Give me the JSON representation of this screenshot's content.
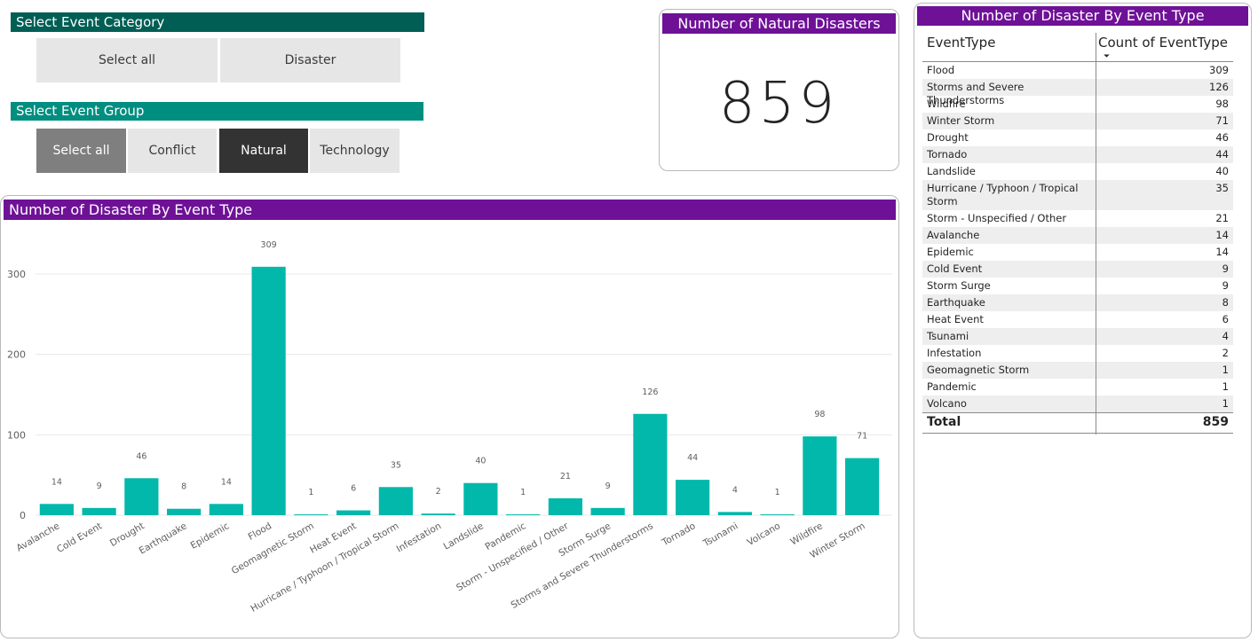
{
  "category_slicer": {
    "header": "Select Event Category",
    "options": [
      "Select all",
      "Disaster"
    ]
  },
  "group_slicer": {
    "header": "Select Event Group",
    "options": [
      {
        "label": "Select all",
        "state": "partial"
      },
      {
        "label": "Conflict",
        "state": "off"
      },
      {
        "label": "Natural",
        "state": "selected"
      },
      {
        "label": "Technology",
        "state": "off"
      }
    ]
  },
  "kpi": {
    "title": "Number of Natural Disasters",
    "value": "859"
  },
  "table": {
    "title": "Number of Disaster By Event Type",
    "col1": "EventType",
    "col2": "Count of EventType",
    "sort_indicator": "⏷",
    "rows": [
      {
        "name": "Flood",
        "count": "309"
      },
      {
        "name": "Storms and Severe Thunderstorms",
        "count": "126"
      },
      {
        "name": "Wildfire",
        "count": "98"
      },
      {
        "name": "Winter Storm",
        "count": "71"
      },
      {
        "name": "Drought",
        "count": "46"
      },
      {
        "name": "Tornado",
        "count": "44"
      },
      {
        "name": "Landslide",
        "count": "40"
      },
      {
        "name": "Hurricane / Typhoon / Tropical Storm",
        "count": "35"
      },
      {
        "name": "Storm - Unspecified / Other",
        "count": "21"
      },
      {
        "name": "Avalanche",
        "count": "14"
      },
      {
        "name": "Epidemic",
        "count": "14"
      },
      {
        "name": "Cold Event",
        "count": "9"
      },
      {
        "name": "Storm Surge",
        "count": "9"
      },
      {
        "name": "Earthquake",
        "count": "8"
      },
      {
        "name": "Heat Event",
        "count": "6"
      },
      {
        "name": "Tsunami",
        "count": "4"
      },
      {
        "name": "Infestation",
        "count": "2"
      },
      {
        "name": "Geomagnetic Storm",
        "count": "1"
      },
      {
        "name": "Pandemic",
        "count": "1"
      },
      {
        "name": "Volcano",
        "count": "1"
      }
    ],
    "total_label": "Total",
    "total_value": "859"
  },
  "colors": {
    "bar": "#01b8aa",
    "title_purple": "#6e1197",
    "slicer_header_dark": "#005e55",
    "slicer_header_teal": "#008e80",
    "selected_dark": "#333333",
    "partial_gray": "#7f7f7f"
  },
  "chart_data": {
    "type": "bar",
    "title": "Number of Disaster By Event Type",
    "categories": [
      "Avalanche",
      "Cold Event",
      "Drought",
      "Earthquake",
      "Epidemic",
      "Flood",
      "Geomagnetic Storm",
      "Heat Event",
      "Hurricane / Typhoon / Tropical Storm",
      "Infestation",
      "Landslide",
      "Pandemic",
      "Storm - Unspecified / Other",
      "Storm Surge",
      "Storms and Severe Thunderstorms",
      "Tornado",
      "Tsunami",
      "Volcano",
      "Wildfire",
      "Winter Storm"
    ],
    "values": [
      14,
      9,
      46,
      8,
      14,
      309,
      1,
      6,
      35,
      2,
      40,
      1,
      21,
      9,
      126,
      44,
      4,
      1,
      98,
      71
    ],
    "yticks": [
      0,
      100,
      200,
      300
    ],
    "ylim": [
      0,
      320
    ],
    "xlabel": "",
    "ylabel": "",
    "grid": true
  }
}
